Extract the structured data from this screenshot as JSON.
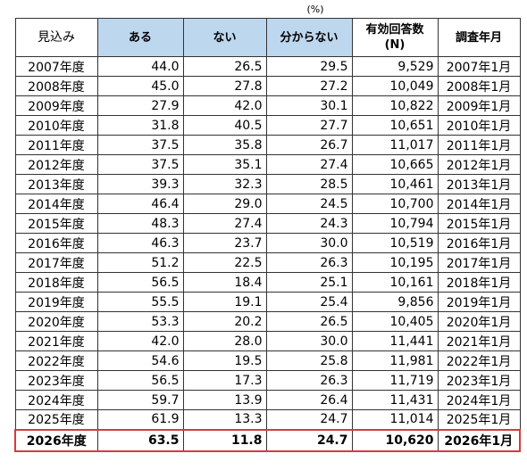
{
  "unit_label": "(%)",
  "headers": {
    "period": "見込み",
    "yes": "ある",
    "no": "ない",
    "unknown": "分からない",
    "responses_line1": "有効回答数",
    "responses_line2": "(N)",
    "survey_date": "調査年月"
  },
  "header_colors": {
    "highlight_blue": "#bdd7ee",
    "current_row_border": "#d83a3a"
  },
  "rows": [
    {
      "year": "2007年度",
      "yes": "44.0",
      "no": "26.5",
      "unknown": "29.5",
      "n": "9,529",
      "date": "2007年1月"
    },
    {
      "year": "2008年度",
      "yes": "45.0",
      "no": "27.8",
      "unknown": "27.2",
      "n": "10,049",
      "date": "2008年1月"
    },
    {
      "year": "2009年度",
      "yes": "27.9",
      "no": "42.0",
      "unknown": "30.1",
      "n": "10,822",
      "date": "2009年1月"
    },
    {
      "year": "2010年度",
      "yes": "31.8",
      "no": "40.5",
      "unknown": "27.7",
      "n": "10,651",
      "date": "2010年1月"
    },
    {
      "year": "2011年度",
      "yes": "37.5",
      "no": "35.8",
      "unknown": "26.7",
      "n": "11,017",
      "date": "2011年1月"
    },
    {
      "year": "2012年度",
      "yes": "37.5",
      "no": "35.1",
      "unknown": "27.4",
      "n": "10,665",
      "date": "2012年1月"
    },
    {
      "year": "2013年度",
      "yes": "39.3",
      "no": "32.3",
      "unknown": "28.5",
      "n": "10,461",
      "date": "2013年1月"
    },
    {
      "year": "2014年度",
      "yes": "46.4",
      "no": "29.0",
      "unknown": "24.5",
      "n": "10,700",
      "date": "2014年1月"
    },
    {
      "year": "2015年度",
      "yes": "48.3",
      "no": "27.4",
      "unknown": "24.3",
      "n": "10,794",
      "date": "2015年1月"
    },
    {
      "year": "2016年度",
      "yes": "46.3",
      "no": "23.7",
      "unknown": "30.0",
      "n": "10,519",
      "date": "2016年1月"
    },
    {
      "year": "2017年度",
      "yes": "51.2",
      "no": "22.5",
      "unknown": "26.3",
      "n": "10,195",
      "date": "2017年1月"
    },
    {
      "year": "2018年度",
      "yes": "56.5",
      "no": "18.4",
      "unknown": "25.1",
      "n": "10,161",
      "date": "2018年1月"
    },
    {
      "year": "2019年度",
      "yes": "55.5",
      "no": "19.1",
      "unknown": "25.4",
      "n": "9,856",
      "date": "2019年1月"
    },
    {
      "year": "2020年度",
      "yes": "53.3",
      "no": "20.2",
      "unknown": "26.5",
      "n": "10,405",
      "date": "2020年1月"
    },
    {
      "year": "2021年度",
      "yes": "42.0",
      "no": "28.0",
      "unknown": "30.0",
      "n": "11,441",
      "date": "2021年1月"
    },
    {
      "year": "2022年度",
      "yes": "54.6",
      "no": "19.5",
      "unknown": "25.8",
      "n": "11,981",
      "date": "2022年1月"
    },
    {
      "year": "2023年度",
      "yes": "56.5",
      "no": "17.3",
      "unknown": "26.3",
      "n": "11,719",
      "date": "2023年1月"
    },
    {
      "year": "2024年度",
      "yes": "59.7",
      "no": "13.9",
      "unknown": "26.4",
      "n": "11,431",
      "date": "2024年1月"
    },
    {
      "year": "2025年度",
      "yes": "61.9",
      "no": "13.3",
      "unknown": "24.7",
      "n": "11,014",
      "date": "2025年1月"
    },
    {
      "year": "2026年度",
      "yes": "63.5",
      "no": "11.8",
      "unknown": "24.7",
      "n": "10,620",
      "date": "2026年1月",
      "highlight": true
    }
  ]
}
